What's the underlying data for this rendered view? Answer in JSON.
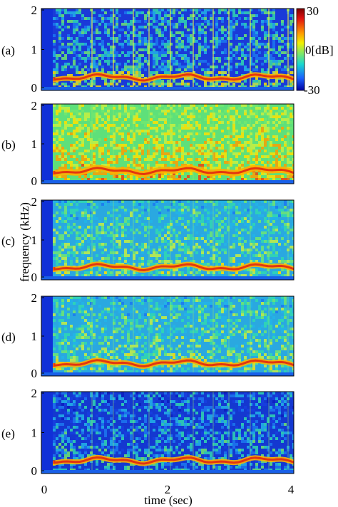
{
  "chart_data": [
    {
      "type": "heatmap",
      "panel_label": "(a)",
      "x": [
        0,
        2,
        4
      ],
      "xlim": [
        0,
        4
      ],
      "ylim": [
        0,
        2
      ],
      "yticks": [
        "0",
        "1",
        "2"
      ],
      "ylabel": "frequency (kHz)",
      "colorbar": {
        "min": -30,
        "max": 30,
        "ticks": [
          "30",
          "0[dB]",
          "-30"
        ]
      },
      "description_values": {
        "dominant_level_db_low_band": 25,
        "background_level_db": -30
      }
    },
    {
      "type": "heatmap",
      "panel_label": "(b)",
      "xlim": [
        0,
        4
      ],
      "ylim": [
        0,
        2
      ],
      "yticks": [
        "0",
        "1",
        "2"
      ]
    },
    {
      "type": "heatmap",
      "panel_label": "(c)",
      "xlim": [
        0,
        4
      ],
      "ylim": [
        0,
        2
      ],
      "yticks": [
        "0",
        "1",
        "2"
      ]
    },
    {
      "type": "heatmap",
      "panel_label": "(d)",
      "xlim": [
        0,
        4
      ],
      "ylim": [
        0,
        2
      ],
      "yticks": [
        "0",
        "1",
        "2"
      ]
    },
    {
      "type": "heatmap",
      "panel_label": "(e)",
      "xlim": [
        0,
        4
      ],
      "ylim": [
        0,
        2
      ],
      "yticks": [
        "0",
        "1",
        "2"
      ],
      "xticks": [
        "0",
        "2",
        "4"
      ],
      "xlabel": "time (sec)"
    }
  ],
  "colors": {
    "low": "#0a28c8",
    "mid": "#2fd8a0",
    "high": "#ffe000",
    "peak": "#d81818"
  }
}
